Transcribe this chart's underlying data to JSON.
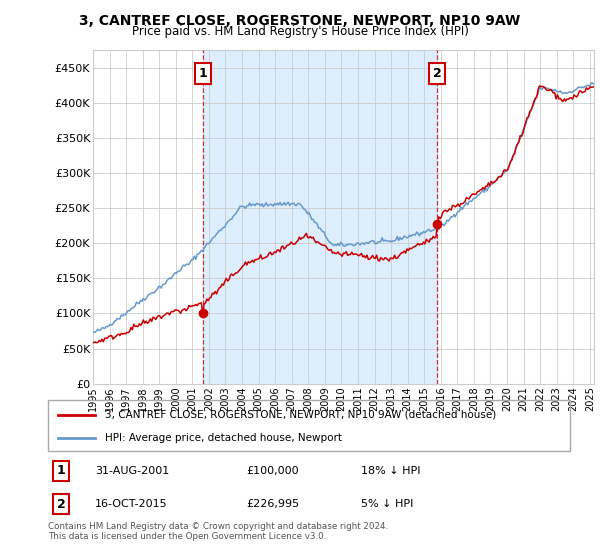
{
  "title": "3, CANTREF CLOSE, ROGERSTONE, NEWPORT, NP10 9AW",
  "subtitle": "Price paid vs. HM Land Registry's House Price Index (HPI)",
  "sale1": {
    "date_year": 2001,
    "date_month": 8,
    "price": 100000,
    "label": "1",
    "pct": "18% ↓ HPI",
    "date_str": "31-AUG-2001"
  },
  "sale2": {
    "date_year": 2015,
    "date_month": 10,
    "price": 226995,
    "label": "2",
    "pct": "5% ↓ HPI",
    "date_str": "16-OCT-2015"
  },
  "legend_line1": "3, CANTREF CLOSE, ROGERSTONE, NEWPORT, NP10 9AW (detached house)",
  "legend_line2": "HPI: Average price, detached house, Newport",
  "footer": "Contains HM Land Registry data © Crown copyright and database right 2024.\nThis data is licensed under the Open Government Licence v3.0.",
  "price_line_color": "#cc0000",
  "hpi_line_color": "#6699cc",
  "shade_color": "#ddeeff",
  "sale_marker_color": "#cc0000",
  "grid_color": "#cccccc",
  "annotation_box_color": "#cc0000",
  "vline_color": "#cc0000",
  "ylim": [
    0,
    475000
  ],
  "yticks": [
    0,
    50000,
    100000,
    150000,
    200000,
    250000,
    300000,
    350000,
    400000,
    450000
  ],
  "ytick_labels": [
    "£0",
    "£50K",
    "£100K",
    "£150K",
    "£200K",
    "£250K",
    "£300K",
    "£350K",
    "£400K",
    "£450K"
  ],
  "xstart_year": 1995,
  "xend_year": 2025
}
